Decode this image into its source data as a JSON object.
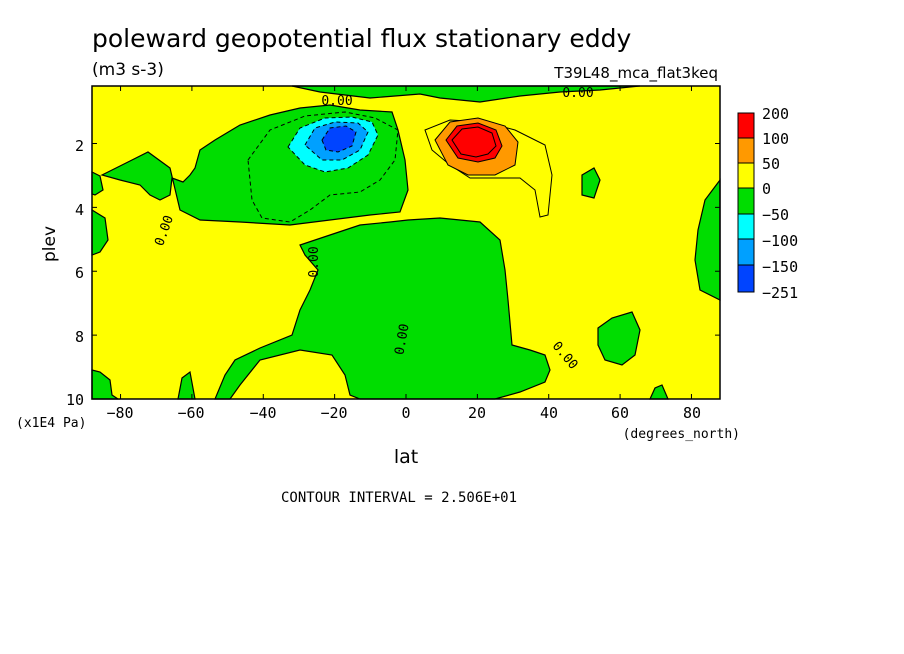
{
  "chart_data": {
    "type": "heatmap",
    "subtype": "filled-contour",
    "title": "poleward geopotential flux stationary eddy",
    "units": "(m3 s-3)",
    "experiment": "T39L48_mca_flat3keq",
    "xlabel": "lat",
    "x_units": "(degrees_north)",
    "ylabel": "plev",
    "y_units": "(x1E4 Pa)",
    "xlim": [
      -88,
      88
    ],
    "ylim": [
      10,
      0.2
    ],
    "x_ticks": [
      -80,
      -60,
      -40,
      -20,
      0,
      20,
      40,
      60,
      80
    ],
    "x_tick_labels": [
      "−80",
      "−60",
      "−40",
      "−20",
      "0",
      "20",
      "40",
      "60",
      "80"
    ],
    "y_ticks": [
      2,
      4,
      6,
      8,
      10
    ],
    "y_tick_labels": [
      "2",
      "4",
      "6",
      "8",
      "10"
    ],
    "contour_interval_text": "CONTOUR INTERVAL = 2.506E+01",
    "contour_labels": [
      "0.00",
      "0.00",
      "0.00",
      "0.00",
      "0.00",
      "0.00"
    ],
    "colorbar": {
      "levels": [
        {
          "label": "200",
          "color": "#ff0000"
        },
        {
          "label": "100",
          "color": "#ff9900"
        },
        {
          "label": "50",
          "color": "#ffff00"
        },
        {
          "label": "0",
          "color": "#00dd00"
        },
        {
          "label": "−50",
          "color": "#00ffff"
        },
        {
          "label": "−100",
          "color": "#00a0ff"
        },
        {
          "label": "−150",
          "color": "#0044ff"
        },
        {
          "label": "−251",
          "color": ""
        }
      ]
    },
    "features": [
      {
        "name": "negative minimum",
        "lat": -19,
        "plev": 1.8,
        "approx_value": -251
      },
      {
        "name": "positive maximum",
        "lat": 18,
        "plev": 1.9,
        "approx_value": 200
      }
    ]
  }
}
